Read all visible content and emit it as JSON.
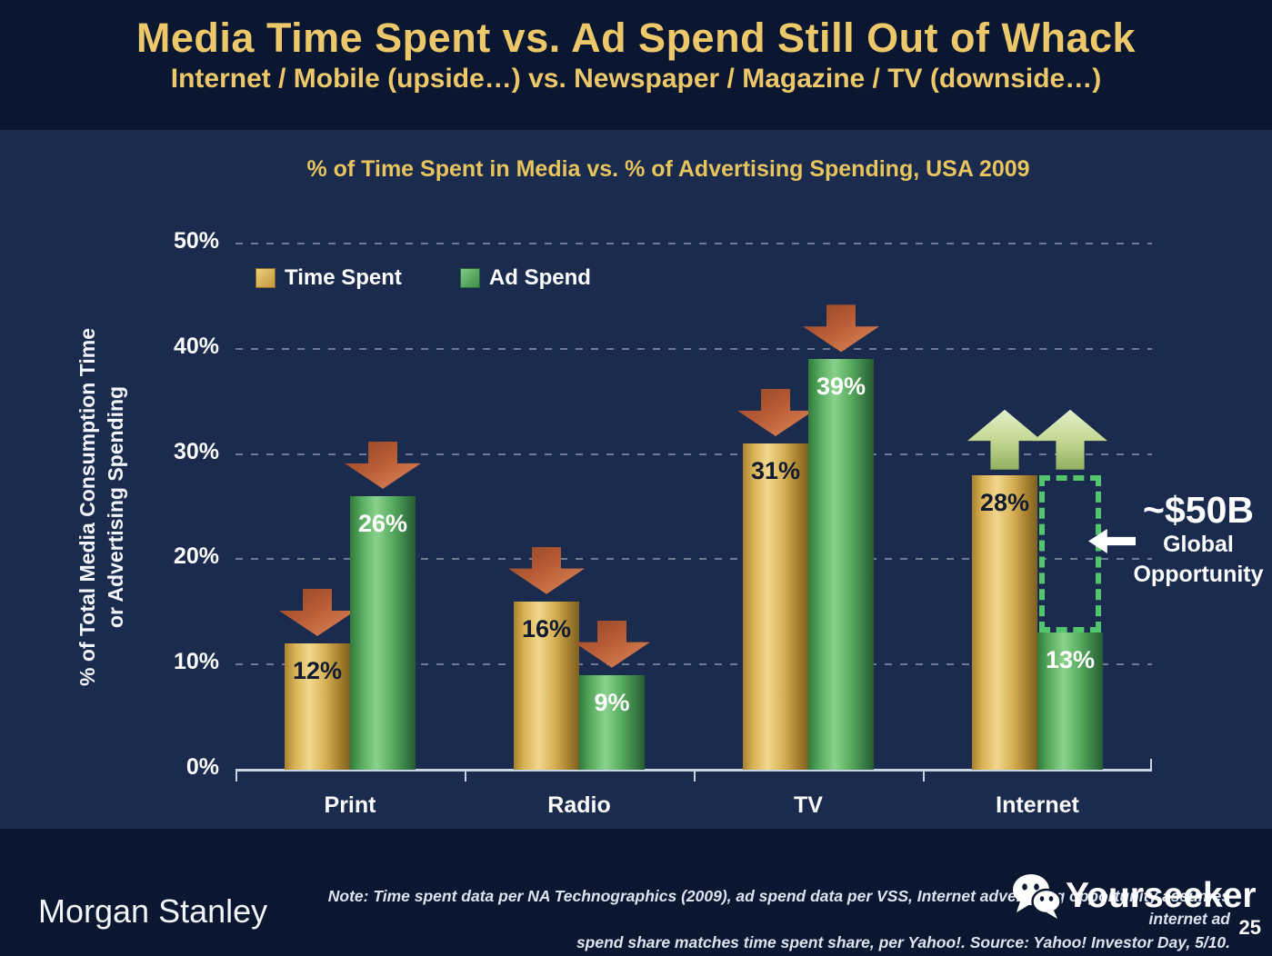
{
  "slide": {
    "title": "Media Time Spent vs. Ad Spend Still Out of Whack",
    "subtitle": "Internet / Mobile (upside…) vs. Newspaper / Magazine / TV (downside…)"
  },
  "chart_data": {
    "type": "bar",
    "title": "% of Time Spent in Media vs. % of Advertising Spending, USA 2009",
    "categories": [
      "Print",
      "Radio",
      "TV",
      "Internet"
    ],
    "series": [
      {
        "name": "Time Spent",
        "color": "#D4AB4C",
        "values": [
          12,
          16,
          31,
          28
        ],
        "labels": [
          "12%",
          "16%",
          "31%",
          "28%"
        ]
      },
      {
        "name": "Ad Spend",
        "color": "#55A85C",
        "values": [
          26,
          9,
          39,
          13
        ],
        "labels": [
          "26%",
          "9%",
          "39%",
          "13%"
        ]
      }
    ],
    "trend_arrows": {
      "Print": "down",
      "Radio": "down",
      "TV": "down",
      "Internet": "up"
    },
    "ylabel": "% of Total Media Consumption Time\nor Advertising Spending",
    "yticks": [
      {
        "value": 0,
        "label": "0%"
      },
      {
        "value": 10,
        "label": "10%"
      },
      {
        "value": 20,
        "label": "20%"
      },
      {
        "value": 30,
        "label": "30%"
      },
      {
        "value": 40,
        "label": "40%"
      },
      {
        "value": 50,
        "label": "50%"
      }
    ],
    "ylim": [
      0,
      50
    ],
    "grid": "dashed-horizontal",
    "legend_position": "top-left-inside"
  },
  "annotation": {
    "value": "~$50B",
    "line1": "Global",
    "line2": "Opportunity",
    "gap": {
      "category": "Internet",
      "from": 13,
      "to": 28
    }
  },
  "footer": {
    "logo": "Morgan Stanley",
    "note_line1": "Note: Time spent data per NA Technographics (2009), ad spend data per VSS, Internet advertising opportunity assumes internet ad",
    "note_line2": "spend share matches time spent share, per Yahoo!. Source: Yahoo! Investor Day, 5/10.",
    "watermark": "Yourseeker",
    "page_number": "25"
  }
}
